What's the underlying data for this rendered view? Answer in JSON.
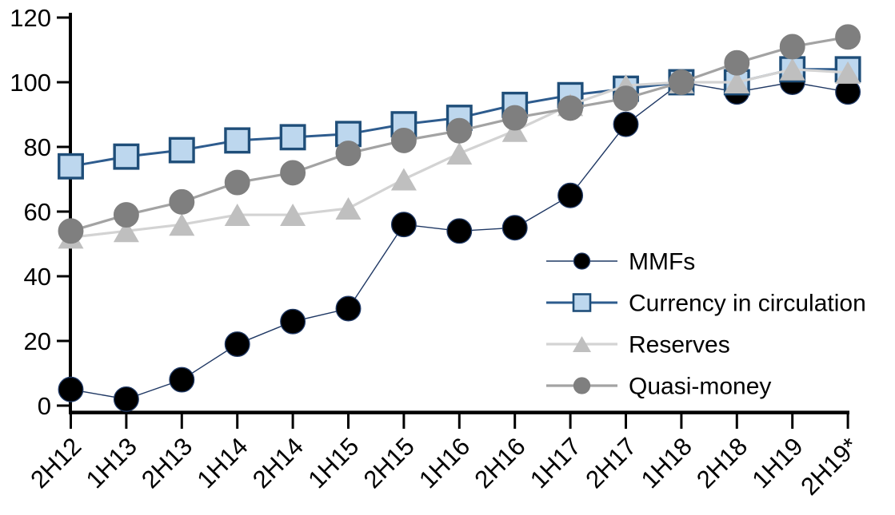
{
  "chart_data": {
    "type": "line",
    "title": "",
    "xlabel": "",
    "ylabel": "",
    "categories": [
      "2H12",
      "1H13",
      "2H13",
      "1H14",
      "2H14",
      "1H15",
      "2H15",
      "1H16",
      "2H16",
      "1H17",
      "2H17",
      "1H18",
      "2H18",
      "1H19",
      "2H19*"
    ],
    "series": [
      {
        "name": "MMFs",
        "marker": "circle",
        "marker_fill": "#000000",
        "marker_stroke": "#1F3864",
        "line_color": "#1F3864",
        "line_width": 1.4,
        "values": [
          5,
          2,
          8,
          19,
          26,
          30,
          56,
          54,
          55,
          65,
          87,
          100,
          97,
          100,
          97
        ]
      },
      {
        "name": "Currency in circulation",
        "marker": "square",
        "marker_fill": "#BDD7EE",
        "marker_stroke": "#1F4E79",
        "line_color": "#2E5C8E",
        "line_width": 3,
        "values": [
          74,
          77,
          79,
          82,
          83,
          84,
          87,
          89,
          93,
          96,
          98,
          100,
          100,
          104,
          104
        ]
      },
      {
        "name": "Reserves",
        "marker": "triangle",
        "marker_fill": "#BFBFBF",
        "marker_stroke": "#BFBFBF",
        "line_color": "#D3D3D3",
        "line_width": 3.2,
        "values": [
          52,
          54,
          56,
          59,
          59,
          61,
          70,
          78,
          85,
          93,
          99,
          100,
          100,
          104,
          103
        ]
      },
      {
        "name": "Quasi-money",
        "marker": "circle",
        "marker_fill": "#7F7F7F",
        "marker_stroke": "#7F7F7F",
        "line_color": "#A3A3A3",
        "line_width": 3.2,
        "values": [
          54,
          59,
          63,
          69,
          72,
          78,
          82,
          85,
          89,
          92,
          95,
          100,
          106,
          111,
          114
        ]
      }
    ],
    "y_ticks": [
      0,
      20,
      40,
      60,
      80,
      100,
      120
    ],
    "ylim": [
      0,
      120
    ],
    "grid": false,
    "legend_position": "inside-right",
    "legend_labels": [
      "MMFs",
      "Currency in circulation",
      "Reserves",
      "Quasi-money"
    ],
    "axis_color": "#000000",
    "text_color": "#000000"
  }
}
